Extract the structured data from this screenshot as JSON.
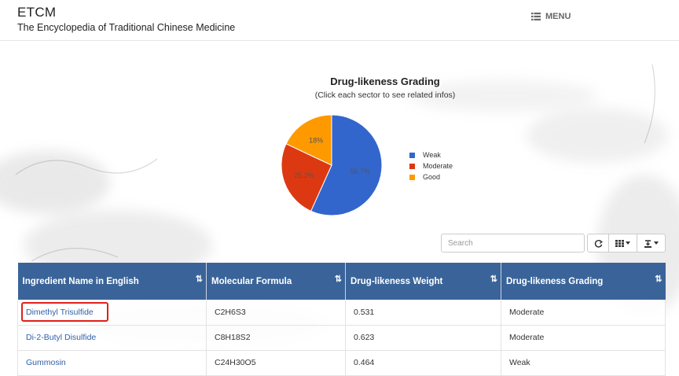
{
  "header": {
    "title": "ETCM",
    "subtitle": "The Encyclopedia of Traditional Chinese Medicine",
    "menu_label": "MENU"
  },
  "chart": {
    "title": "Drug-likeness Grading",
    "subtitle": "(Click each sector to see related infos)"
  },
  "chart_data": {
    "type": "pie",
    "title": "Drug-likeness Grading",
    "categories": [
      "Weak",
      "Moderate",
      "Good"
    ],
    "values": [
      56.7,
      25.2,
      18
    ],
    "value_labels": [
      "56.7%",
      "25.2%",
      "18%"
    ],
    "colors": [
      "#3366cc",
      "#dc3912",
      "#ff9900"
    ],
    "legend_placement": "right"
  },
  "toolbar": {
    "search_placeholder": "Search",
    "refresh_icon": "refresh-icon",
    "columns_icon": "columns-icon",
    "export_icon": "export-icon"
  },
  "table": {
    "columns": [
      "Ingredient Name in English",
      "Molecular Formula",
      "Drug-likeness Weight",
      "Drug-likeness Grading"
    ],
    "rows": [
      {
        "name": "Dimethyl Trisulfide",
        "formula": "C2H6S3",
        "weight": "0.531",
        "grading": "Moderate"
      },
      {
        "name": "Di-2-Butyl Disulfide",
        "formula": "C8H18S2",
        "weight": "0.623",
        "grading": "Moderate"
      },
      {
        "name": "Gummosin",
        "formula": "C24H30O5",
        "weight": "0.464",
        "grading": "Weak"
      }
    ]
  }
}
